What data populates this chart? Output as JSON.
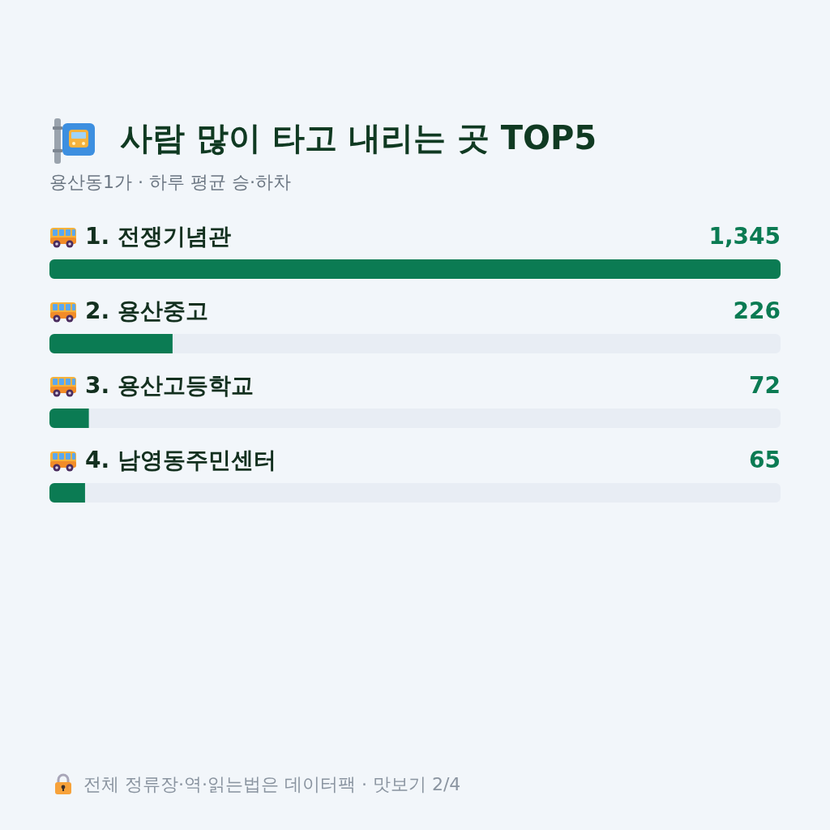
{
  "chart_data": {
    "type": "bar",
    "orientation": "horizontal",
    "title": "사람 많이 타고 내리는 곳 TOP5",
    "subtitle": "용산동1가 · 하루 평균 승·하차",
    "categories": [
      "1. 전쟁기념관",
      "2. 용산중고",
      "3. 용산고등학교",
      "4. 남영동주민센터"
    ],
    "values": [
      1345,
      226,
      72,
      65
    ],
    "color": "#0b7b53",
    "value_labels": [
      "1,345",
      "226",
      "72",
      "65"
    ],
    "tick_labels": "y",
    "annotations": [
      "전체 정류장·역·읽는법은 데이터팩 · 맛보기 2/4"
    ]
  }
}
